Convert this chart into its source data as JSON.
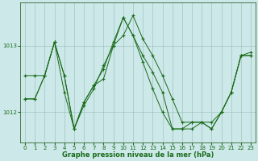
{
  "xlabel": "Graphe pression niveau de la mer (hPa)",
  "background_color": "#cce8e8",
  "plot_bg_color": "#cce8e8",
  "grid_color": "#99bbbb",
  "line_color": "#1a6b1a",
  "marker_color": "#1a6b1a",
  "yticks": [
    1012,
    1013
  ],
  "ylim": [
    1011.55,
    1013.65
  ],
  "xlim": [
    -0.5,
    23.5
  ],
  "xticks": [
    0,
    1,
    2,
    3,
    4,
    5,
    6,
    7,
    8,
    9,
    10,
    11,
    12,
    13,
    14,
    15,
    16,
    17,
    18,
    19,
    20,
    21,
    22,
    23
  ],
  "series": [
    [
      1012.2,
      1012.2,
      1012.55,
      1013.05,
      1012.55,
      1011.75,
      1012.1,
      1012.35,
      1012.7,
      1013.0,
      1013.15,
      1013.45,
      1013.1,
      1012.85,
      1012.55,
      1012.2,
      1011.85,
      1011.85,
      1011.85,
      1011.85,
      1012.0,
      1012.3,
      1012.85,
      1012.85
    ],
    [
      1012.55,
      1012.55,
      1012.55,
      1013.05,
      1012.3,
      1011.75,
      1012.15,
      1012.4,
      1012.5,
      1013.0,
      1013.42,
      1013.15,
      1012.75,
      1012.35,
      1012.0,
      1011.75,
      1011.75,
      1011.75,
      1011.85,
      1011.75,
      1012.0,
      1012.3,
      1012.85,
      1012.85
    ],
    [
      1012.2,
      1012.2,
      1012.55,
      1013.05,
      1012.55,
      1011.75,
      1012.15,
      1012.4,
      1012.65,
      1013.05,
      1013.42,
      1013.15,
      1012.85,
      1012.6,
      1012.3,
      1011.75,
      1011.75,
      1011.85,
      1011.85,
      1011.75,
      1012.0,
      1012.3,
      1012.85,
      1012.9
    ]
  ]
}
